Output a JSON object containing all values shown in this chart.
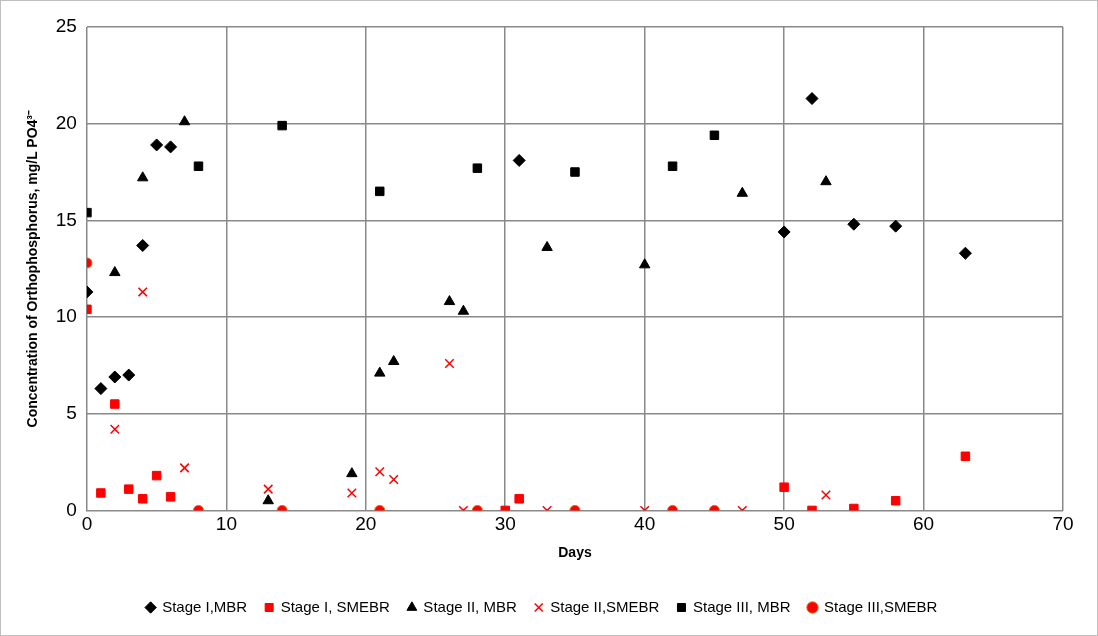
{
  "chart_data": {
    "type": "scatter",
    "xlabel": "Days",
    "ylabel": "Concentration of Orthophosphorus, mg/L PO4³⁻",
    "xlim": [
      0,
      70
    ],
    "xticks": [
      0,
      10,
      20,
      30,
      40,
      50,
      60,
      70
    ],
    "ylim": [
      0,
      25
    ],
    "yticks": [
      0,
      5,
      10,
      15,
      20,
      25
    ],
    "grid": true,
    "legend": "bottom",
    "series": [
      {
        "name": "Stage I,MBR",
        "color": "#000000",
        "marker": "diamond",
        "x": [
          0,
          1,
          2,
          3,
          4,
          5,
          6,
          31,
          50,
          52,
          55,
          58,
          63
        ],
        "values": [
          11.3,
          6.3,
          6.9,
          7.0,
          13.7,
          18.9,
          18.8,
          18.1,
          14.4,
          21.3,
          14.8,
          14.7,
          13.3
        ]
      },
      {
        "name": "Stage I, SMEBR",
        "color": "#ff0000",
        "marker": "square",
        "x": [
          0,
          1,
          2,
          3,
          4,
          5,
          6,
          30,
          31,
          50,
          52,
          55,
          58,
          63
        ],
        "values": [
          10.4,
          0.9,
          5.5,
          1.1,
          0.6,
          1.8,
          0.7,
          0.0,
          0.6,
          1.2,
          0.0,
          0.1,
          0.5,
          2.8
        ]
      },
      {
        "name": "Stage II, MBR",
        "color": "#000000",
        "marker": "triangle",
        "x": [
          2,
          4,
          7,
          13,
          19,
          21,
          22,
          26,
          27,
          33,
          40,
          47,
          53
        ],
        "values": [
          12.3,
          17.2,
          20.1,
          0.5,
          1.9,
          7.1,
          7.7,
          10.8,
          10.3,
          13.6,
          12.7,
          16.4,
          17.0
        ]
      },
      {
        "name": "Stage II,SMEBR",
        "color": "#ff0000",
        "marker": "cross",
        "x": [
          2,
          4,
          7,
          13,
          19,
          21,
          22,
          26,
          27,
          33,
          40,
          47,
          53
        ],
        "values": [
          4.2,
          11.3,
          2.2,
          1.1,
          0.9,
          2.0,
          1.6,
          7.6,
          0.0,
          0.0,
          0.0,
          0.0,
          0.8
        ]
      },
      {
        "name": "Stage III, MBR",
        "color": "#000000",
        "marker": "square",
        "x": [
          0,
          8,
          14,
          21,
          28,
          35,
          42,
          45
        ],
        "values": [
          15.4,
          17.8,
          19.9,
          16.5,
          17.7,
          17.5,
          17.8,
          19.4
        ]
      },
      {
        "name": "Stage III,SMEBR",
        "color": "#ff0000",
        "marker": "circle",
        "x": [
          0,
          8,
          14,
          21,
          28,
          35,
          42,
          45
        ],
        "values": [
          12.8,
          0,
          0,
          0,
          0,
          0,
          0,
          0
        ]
      }
    ]
  }
}
